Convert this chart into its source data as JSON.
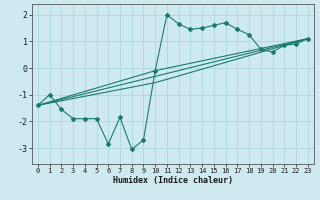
{
  "background_color": "#ceeaf0",
  "grid_color": "#a8d8e0",
  "line_color": "#1a7a6e",
  "xlabel": "Humidex (Indice chaleur)",
  "xlim": [
    -0.5,
    23.5
  ],
  "ylim": [
    -3.6,
    2.4
  ],
  "yticks": [
    -3,
    -2,
    -1,
    0,
    1,
    2
  ],
  "xticks": [
    0,
    1,
    2,
    3,
    4,
    5,
    6,
    7,
    8,
    9,
    10,
    11,
    12,
    13,
    14,
    15,
    16,
    17,
    18,
    19,
    20,
    21,
    22,
    23
  ],
  "line1_x": [
    0,
    1,
    2,
    3,
    4,
    5,
    6,
    7,
    8,
    9,
    10,
    11,
    12,
    13,
    14,
    15,
    16,
    17,
    18,
    19,
    20,
    21,
    22,
    23
  ],
  "line1_y": [
    -1.4,
    -1.0,
    -1.55,
    -1.9,
    -1.9,
    -1.9,
    -2.85,
    -1.85,
    -3.05,
    -2.7,
    -0.1,
    2.0,
    1.65,
    1.45,
    1.5,
    1.6,
    1.7,
    1.45,
    1.25,
    0.7,
    0.6,
    0.85,
    0.9,
    1.1
  ],
  "line2_x": [
    0,
    23
  ],
  "line2_y": [
    -1.4,
    1.1
  ],
  "line3_x": [
    0,
    10,
    23
  ],
  "line3_y": [
    -1.4,
    -0.1,
    1.1
  ],
  "line4_x": [
    0,
    10,
    23
  ],
  "line4_y": [
    -1.4,
    -0.55,
    1.1
  ]
}
